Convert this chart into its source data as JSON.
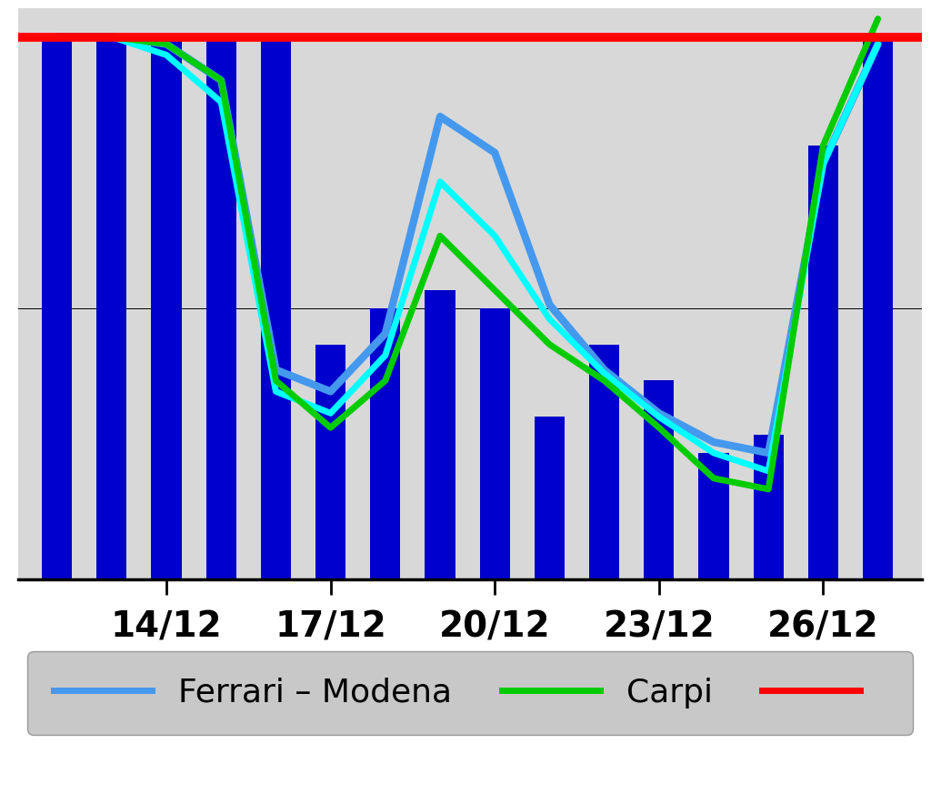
{
  "dates": [
    12,
    13,
    14,
    15,
    16,
    17,
    18,
    19,
    20,
    21,
    22,
    23,
    24,
    25,
    26,
    27
  ],
  "bastiglia_bars": [
    150,
    150,
    150,
    150,
    150,
    65,
    75,
    80,
    75,
    45,
    65,
    55,
    35,
    40,
    120,
    150
  ],
  "carpi_line": [
    150,
    150,
    148,
    138,
    55,
    42,
    55,
    95,
    80,
    65,
    55,
    42,
    28,
    25,
    120,
    155
  ],
  "bastiglia_mean_line": [
    150,
    150,
    145,
    132,
    52,
    46,
    62,
    110,
    95,
    72,
    57,
    45,
    35,
    30,
    115,
    148
  ],
  "ferrari_modena_line": [
    150,
    150,
    148,
    138,
    58,
    52,
    68,
    128,
    118,
    76,
    58,
    46,
    38,
    35,
    115,
    148
  ],
  "limit_value": 150,
  "midline_value": 75,
  "bar_color": "#0000CC",
  "carpi_color": "#00CC00",
  "bastiglia_mean_color": "#00FFFF",
  "ferrari_modena_color": "#4499EE",
  "limit_color": "#FF0000",
  "plot_bg_color": "#D8D8D8",
  "fig_bg_color": "#FFFFFF",
  "legend_bg_color": "#BBBBBB",
  "ylim": [
    0,
    158
  ],
  "xlim_left": 11.3,
  "xlim_right": 27.8,
  "xtick_positions": [
    14,
    17,
    20,
    23,
    26
  ],
  "xtick_labels": [
    "14/12",
    "17/12",
    "20/12",
    "23/12",
    "26/12"
  ],
  "legend_items": [
    {
      "label": "Ferrari – Modena",
      "color": "#4499EE"
    },
    {
      "label": "Carpi",
      "color": "#00CC00"
    },
    {
      "label": "",
      "color": "#FF0000"
    }
  ],
  "lw_thick": 6,
  "lw_medium": 5,
  "bar_width": 0.55,
  "tick_fontsize": 28,
  "legend_fontsize": 26
}
